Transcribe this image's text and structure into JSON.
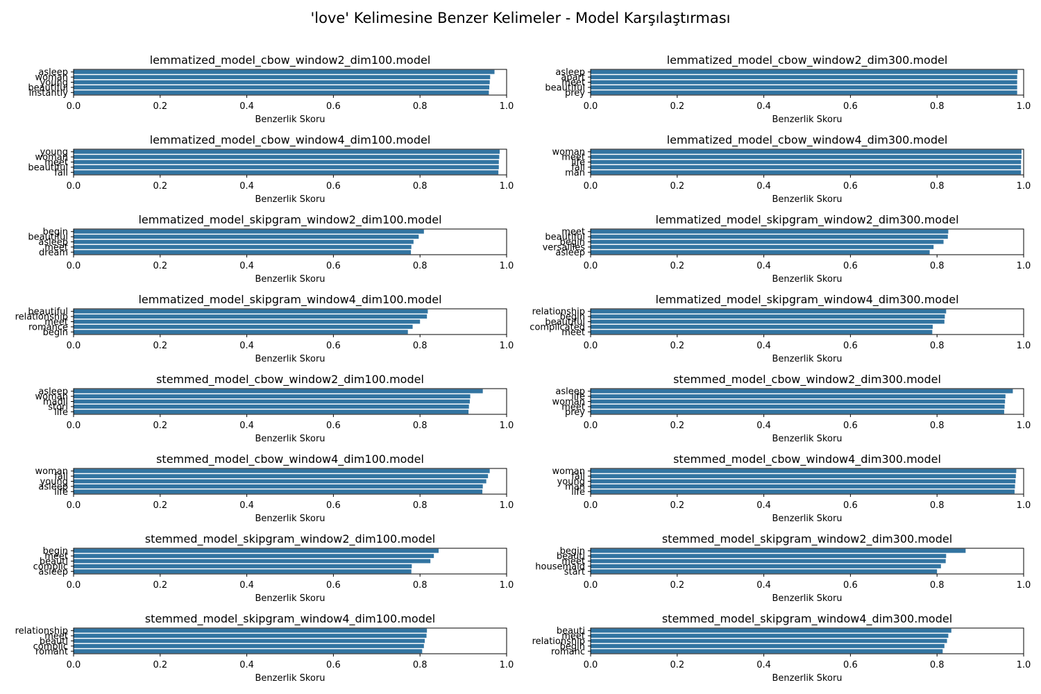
{
  "figure": {
    "title": "'love' Kelimesine Benzer Kelimeler - Model Karşılaştırması",
    "bar_color": "#3274a1"
  },
  "chart_data": [
    {
      "type": "bar",
      "orientation": "horizontal",
      "title": "lemmatized_model_cbow_window2_dim100.model",
      "categories": [
        "asleep",
        "woman",
        "young",
        "beautiful",
        "instantly"
      ],
      "values": [
        0.972,
        0.962,
        0.961,
        0.96,
        0.959
      ],
      "xlabel": "Benzerlik Skoru",
      "xlim": [
        0,
        1
      ],
      "xticks": [
        "0.0",
        "0.2",
        "0.4",
        "0.6",
        "0.8",
        "1.0"
      ]
    },
    {
      "type": "bar",
      "orientation": "horizontal",
      "title": "lemmatized_model_cbow_window2_dim300.model",
      "categories": [
        "asleep",
        "apart",
        "meet",
        "beautiful",
        "prey"
      ],
      "values": [
        0.986,
        0.985,
        0.985,
        0.985,
        0.985
      ],
      "xlabel": "Benzerlik Skoru",
      "xlim": [
        0,
        1
      ],
      "xticks": [
        "0.0",
        "0.2",
        "0.4",
        "0.6",
        "0.8",
        "1.0"
      ]
    },
    {
      "type": "bar",
      "orientation": "horizontal",
      "title": "lemmatized_model_cbow_window4_dim100.model",
      "categories": [
        "young",
        "woman",
        "meet",
        "beautiful",
        "fall"
      ],
      "values": [
        0.984,
        0.983,
        0.982,
        0.982,
        0.981
      ],
      "xlabel": "Benzerlik Skoru",
      "xlim": [
        0,
        1
      ],
      "xticks": [
        "0.0",
        "0.2",
        "0.4",
        "0.6",
        "0.8",
        "1.0"
      ]
    },
    {
      "type": "bar",
      "orientation": "horizontal",
      "title": "lemmatized_model_cbow_window4_dim300.model",
      "categories": [
        "woman",
        "meet",
        "life",
        "fall",
        "man"
      ],
      "values": [
        0.995,
        0.995,
        0.994,
        0.994,
        0.994
      ],
      "xlabel": "Benzerlik Skoru",
      "xlim": [
        0,
        1
      ],
      "xticks": [
        "0.0",
        "0.2",
        "0.4",
        "0.6",
        "0.8",
        "1.0"
      ]
    },
    {
      "type": "bar",
      "orientation": "horizontal",
      "title": "lemmatized_model_skipgram_window2_dim100.model",
      "categories": [
        "begin",
        "beautiful",
        "asleep",
        "meet",
        "dream"
      ],
      "values": [
        0.809,
        0.797,
        0.785,
        0.78,
        0.779
      ],
      "xlabel": "Benzerlik Skoru",
      "xlim": [
        0,
        1
      ],
      "xticks": [
        "0.0",
        "0.2",
        "0.4",
        "0.6",
        "0.8",
        "1.0"
      ]
    },
    {
      "type": "bar",
      "orientation": "horizontal",
      "title": "lemmatized_model_skipgram_window2_dim300.model",
      "categories": [
        "meet",
        "beautiful",
        "begin",
        "versailles",
        "asleep"
      ],
      "values": [
        0.826,
        0.825,
        0.815,
        0.792,
        0.783
      ],
      "xlabel": "Benzerlik Skoru",
      "xlim": [
        0,
        1
      ],
      "xticks": [
        "0.0",
        "0.2",
        "0.4",
        "0.6",
        "0.8",
        "1.0"
      ]
    },
    {
      "type": "bar",
      "orientation": "horizontal",
      "title": "lemmatized_model_skipgram_window4_dim100.model",
      "categories": [
        "beautiful",
        "relationship",
        "meet",
        "romance",
        "begin"
      ],
      "values": [
        0.818,
        0.816,
        0.8,
        0.783,
        0.772
      ],
      "xlabel": "Benzerlik Skoru",
      "xlim": [
        0,
        1
      ],
      "xticks": [
        "0.0",
        "0.2",
        "0.4",
        "0.6",
        "0.8",
        "1.0"
      ]
    },
    {
      "type": "bar",
      "orientation": "horizontal",
      "title": "lemmatized_model_skipgram_window4_dim300.model",
      "categories": [
        "relationship",
        "begin",
        "beautiful",
        "complicated",
        "meet"
      ],
      "values": [
        0.821,
        0.818,
        0.817,
        0.79,
        0.789
      ],
      "xlabel": "Benzerlik Skoru",
      "xlim": [
        0,
        1
      ],
      "xticks": [
        "0.0",
        "0.2",
        "0.4",
        "0.6",
        "0.8",
        "1.0"
      ]
    },
    {
      "type": "bar",
      "orientation": "horizontal",
      "title": "stemmed_model_cbow_window2_dim100.model",
      "categories": [
        "asleep",
        "woman",
        "madli",
        "stori",
        "life"
      ],
      "values": [
        0.945,
        0.916,
        0.915,
        0.913,
        0.912
      ],
      "xlabel": "Benzerlik Skoru",
      "xlim": [
        0,
        1
      ],
      "xticks": [
        "0.0",
        "0.2",
        "0.4",
        "0.6",
        "0.8",
        "1.0"
      ]
    },
    {
      "type": "bar",
      "orientation": "horizontal",
      "title": "stemmed_model_cbow_window2_dim300.model",
      "categories": [
        "asleep",
        "life",
        "woman",
        "meet",
        "prey"
      ],
      "values": [
        0.975,
        0.958,
        0.957,
        0.956,
        0.955
      ],
      "xlabel": "Benzerlik Skoru",
      "xlim": [
        0,
        1
      ],
      "xticks": [
        "0.0",
        "0.2",
        "0.4",
        "0.6",
        "0.8",
        "1.0"
      ]
    },
    {
      "type": "bar",
      "orientation": "horizontal",
      "title": "stemmed_model_cbow_window4_dim100.model",
      "categories": [
        "woman",
        "fall",
        "young",
        "asleep",
        "life"
      ],
      "values": [
        0.961,
        0.957,
        0.953,
        0.945,
        0.944
      ],
      "xlabel": "Benzerlik Skoru",
      "xlim": [
        0,
        1
      ],
      "xticks": [
        "0.0",
        "0.2",
        "0.4",
        "0.6",
        "0.8",
        "1.0"
      ]
    },
    {
      "type": "bar",
      "orientation": "horizontal",
      "title": "stemmed_model_cbow_window4_dim300.model",
      "categories": [
        "woman",
        "fall",
        "young",
        "man",
        "life"
      ],
      "values": [
        0.983,
        0.982,
        0.981,
        0.98,
        0.979
      ],
      "xlabel": "Benzerlik Skoru",
      "xlim": [
        0,
        1
      ],
      "xticks": [
        "0.0",
        "0.2",
        "0.4",
        "0.6",
        "0.8",
        "1.0"
      ]
    },
    {
      "type": "bar",
      "orientation": "horizontal",
      "title": "stemmed_model_skipgram_window2_dim100.model",
      "categories": [
        "begin",
        "meet",
        "beauti",
        "complic",
        "asleep"
      ],
      "values": [
        0.843,
        0.832,
        0.824,
        0.781,
        0.78
      ],
      "xlabel": "Benzerlik Skoru",
      "xlim": [
        0,
        1
      ],
      "xticks": [
        "0.0",
        "0.2",
        "0.4",
        "0.6",
        "0.8",
        "1.0"
      ]
    },
    {
      "type": "bar",
      "orientation": "horizontal",
      "title": "stemmed_model_skipgram_window2_dim300.model",
      "categories": [
        "begin",
        "beauti",
        "meet",
        "housemaid",
        "start"
      ],
      "values": [
        0.866,
        0.821,
        0.82,
        0.809,
        0.8
      ],
      "xlabel": "Benzerlik Skoru",
      "xlim": [
        0,
        1
      ],
      "xticks": [
        "0.0",
        "0.2",
        "0.4",
        "0.6",
        "0.8",
        "1.0"
      ]
    },
    {
      "type": "bar",
      "orientation": "horizontal",
      "title": "stemmed_model_skipgram_window4_dim100.model",
      "categories": [
        "relationship",
        "meet",
        "beauti",
        "complic",
        "romant"
      ],
      "values": [
        0.816,
        0.815,
        0.811,
        0.809,
        0.805
      ],
      "xlabel": "Benzerlik Skoru",
      "xlim": [
        0,
        1
      ],
      "xticks": [
        "0.0",
        "0.2",
        "0.4",
        "0.6",
        "0.8",
        "1.0"
      ]
    },
    {
      "type": "bar",
      "orientation": "horizontal",
      "title": "stemmed_model_skipgram_window4_dim300.model",
      "categories": [
        "beauti",
        "meet",
        "relationship",
        "begin",
        "romanc"
      ],
      "values": [
        0.833,
        0.826,
        0.823,
        0.817,
        0.813
      ],
      "xlabel": "Benzerlik Skoru",
      "xlim": [
        0,
        1
      ],
      "xticks": [
        "0.0",
        "0.2",
        "0.4",
        "0.6",
        "0.8",
        "1.0"
      ]
    }
  ]
}
